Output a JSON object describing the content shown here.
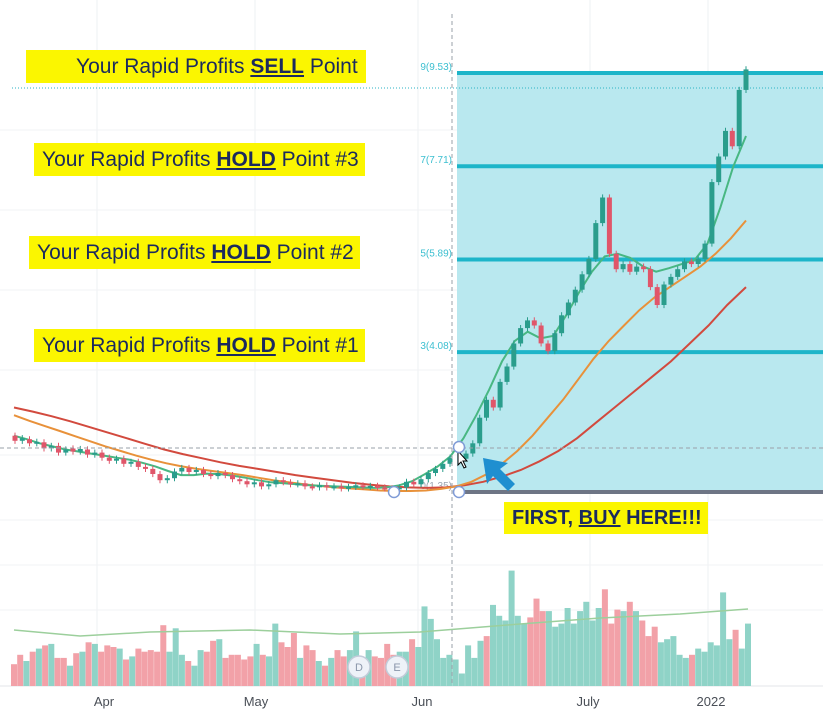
{
  "callouts": {
    "sell": {
      "prefix": "Your Rapid Profits ",
      "key": "SELL",
      "suffix": " Point"
    },
    "hold3": {
      "prefix": "Your Rapid Profits ",
      "key": "HOLD",
      "suffix": " Point #3"
    },
    "hold2": {
      "prefix": "Your Rapid Profits ",
      "key": "HOLD",
      "suffix": " Point #2"
    },
    "hold1": {
      "prefix": "Your Rapid Profits ",
      "key": "HOLD",
      "suffix": " Point #1"
    },
    "buy": {
      "prefix": "FIRST, ",
      "key": "BUY",
      "suffix": " HERE!!!"
    }
  },
  "badges": [
    "D",
    "E"
  ],
  "colors": {
    "zone_fill": "#b9e8ef",
    "level_line": "#1db5c9",
    "base_line": "#6e7585",
    "candle_up": "#2a9d8c",
    "candle_down": "#e0566a",
    "vol_up": "#8fd3c7",
    "vol_down": "#f2a1a8",
    "ma_fast": "#48b782",
    "ma_mid": "#e8913a",
    "ma_slow": "#d24a3e",
    "ma_volume": "#9ccf9c",
    "callout_bg": "#fbf600",
    "callout_text": "#1b2a5e",
    "arrow": "#1f8fd0"
  },
  "chart_data": {
    "type": "candlestick",
    "x_ticks": [
      "Apr",
      "May",
      "Jun",
      "July",
      "2022"
    ],
    "fib_levels": [
      {
        "ratio": "9",
        "price": "9.53",
        "value": 9.53
      },
      {
        "ratio": "7",
        "price": "7.71",
        "value": 7.71
      },
      {
        "ratio": "5",
        "price": "5.89",
        "value": 5.89
      },
      {
        "ratio": "3",
        "price": "4.08",
        "value": 4.08
      },
      {
        "ratio": "0",
        "price": "1.35",
        "value": 1.35
      }
    ],
    "price_range": [
      1.0,
      10.0
    ],
    "candles_before": [
      [
        2.45,
        2.35
      ],
      [
        2.35,
        2.4
      ],
      [
        2.38,
        2.3
      ],
      [
        2.3,
        2.33
      ],
      [
        2.32,
        2.2
      ],
      [
        2.2,
        2.25
      ],
      [
        2.25,
        2.12
      ],
      [
        2.12,
        2.18
      ],
      [
        2.2,
        2.14
      ],
      [
        2.14,
        2.19
      ],
      [
        2.18,
        2.08
      ],
      [
        2.08,
        2.12
      ],
      [
        2.12,
        2.02
      ],
      [
        2.02,
        1.96
      ],
      [
        1.96,
        2.0
      ],
      [
        2.0,
        1.9
      ],
      [
        1.9,
        1.94
      ],
      [
        1.94,
        1.84
      ],
      [
        1.84,
        1.8
      ],
      [
        1.8,
        1.7
      ],
      [
        1.7,
        1.58
      ],
      [
        1.58,
        1.62
      ],
      [
        1.62,
        1.75
      ],
      [
        1.75,
        1.82
      ],
      [
        1.82,
        1.74
      ],
      [
        1.74,
        1.78
      ],
      [
        1.78,
        1.7
      ],
      [
        1.7,
        1.66
      ],
      [
        1.66,
        1.72
      ],
      [
        1.72,
        1.68
      ],
      [
        1.68,
        1.6
      ],
      [
        1.6,
        1.56
      ],
      [
        1.56,
        1.5
      ],
      [
        1.5,
        1.54
      ],
      [
        1.54,
        1.46
      ],
      [
        1.46,
        1.5
      ],
      [
        1.5,
        1.58
      ],
      [
        1.58,
        1.54
      ],
      [
        1.54,
        1.5
      ],
      [
        1.5,
        1.52
      ],
      [
        1.52,
        1.46
      ],
      [
        1.46,
        1.44
      ],
      [
        1.44,
        1.48
      ],
      [
        1.48,
        1.44
      ],
      [
        1.44,
        1.46
      ],
      [
        1.46,
        1.42
      ],
      [
        1.42,
        1.45
      ],
      [
        1.45,
        1.48
      ],
      [
        1.48,
        1.45
      ],
      [
        1.45,
        1.47
      ],
      [
        1.47,
        1.44
      ],
      [
        1.44,
        1.42
      ],
      [
        1.42,
        1.4
      ],
      [
        1.4,
        1.44
      ],
      [
        1.44,
        1.55
      ],
      [
        1.55,
        1.5
      ],
      [
        1.5,
        1.6
      ],
      [
        1.6,
        1.72
      ],
      [
        1.72,
        1.8
      ],
      [
        1.8,
        1.9
      ],
      [
        1.9,
        2.02
      ]
    ],
    "candles_after": [
      [
        2.0,
        2.1
      ],
      [
        2.1,
        2.3
      ],
      [
        2.3,
        2.8
      ],
      [
        2.8,
        3.15
      ],
      [
        3.15,
        3.0
      ],
      [
        3.0,
        3.5
      ],
      [
        3.5,
        3.8
      ],
      [
        3.8,
        4.25
      ],
      [
        4.25,
        4.55
      ],
      [
        4.55,
        4.7
      ],
      [
        4.7,
        4.6
      ],
      [
        4.6,
        4.25
      ],
      [
        4.25,
        4.1
      ],
      [
        4.1,
        4.45
      ],
      [
        4.45,
        4.8
      ],
      [
        4.8,
        5.05
      ],
      [
        5.05,
        5.3
      ],
      [
        5.3,
        5.6
      ],
      [
        5.6,
        5.9
      ],
      [
        5.9,
        6.6
      ],
      [
        6.6,
        7.1
      ],
      [
        7.1,
        6.0
      ],
      [
        6.0,
        5.7
      ],
      [
        5.7,
        5.8
      ],
      [
        5.8,
        5.65
      ],
      [
        5.65,
        5.75
      ],
      [
        5.75,
        5.7
      ],
      [
        5.7,
        5.35
      ],
      [
        5.35,
        5.0
      ],
      [
        5.0,
        5.4
      ],
      [
        5.4,
        5.55
      ],
      [
        5.55,
        5.7
      ],
      [
        5.7,
        5.85
      ],
      [
        5.85,
        5.8
      ],
      [
        5.8,
        5.9
      ],
      [
        5.9,
        6.2
      ],
      [
        6.2,
        7.4
      ],
      [
        7.4,
        7.9
      ],
      [
        7.9,
        8.4
      ],
      [
        8.4,
        8.1
      ],
      [
        8.1,
        9.2
      ],
      [
        9.2,
        9.6
      ]
    ],
    "ma_fast": [
      2.45,
      2.38,
      2.3,
      2.24,
      2.18,
      2.14,
      2.1,
      2.06,
      2.02,
      1.98,
      1.92,
      1.85,
      1.76,
      1.68,
      1.68,
      1.71,
      1.7,
      1.67,
      1.63,
      1.58,
      1.54,
      1.52,
      1.5,
      1.48,
      1.47,
      1.46,
      1.45,
      1.44,
      1.43,
      1.44,
      1.48,
      1.56,
      1.7,
      1.85,
      2.05,
      2.4,
      2.85,
      3.35,
      3.9,
      4.3,
      4.48,
      4.35,
      4.4,
      4.8,
      5.25,
      5.65,
      5.95,
      6.0,
      5.92,
      5.75,
      5.65,
      5.72,
      5.8,
      5.88,
      6.2,
      6.9,
      7.7,
      8.3
    ],
    "ma_mid": [
      2.85,
      2.74,
      2.64,
      2.54,
      2.44,
      2.34,
      2.24,
      2.15,
      2.06,
      1.98,
      1.91,
      1.85,
      1.8,
      1.76,
      1.72,
      1.68,
      1.63,
      1.58,
      1.54,
      1.5,
      1.47,
      1.44,
      1.42,
      1.4,
      1.38,
      1.37,
      1.37,
      1.38,
      1.41,
      1.46,
      1.55,
      1.7,
      1.9,
      2.15,
      2.45,
      2.8,
      3.15,
      3.55,
      3.95,
      4.3,
      4.6,
      4.9,
      5.15,
      5.35,
      5.55,
      5.75,
      6.0,
      6.3,
      6.65
    ],
    "ma_slow": [
      3.0,
      2.92,
      2.83,
      2.73,
      2.62,
      2.51,
      2.4,
      2.29,
      2.18,
      2.09,
      2.01,
      1.93,
      1.86,
      1.8,
      1.74,
      1.68,
      1.63,
      1.58,
      1.53,
      1.49,
      1.46,
      1.44,
      1.43,
      1.44,
      1.48,
      1.55,
      1.65,
      1.78,
      1.95,
      2.15,
      2.4,
      2.7,
      3.0,
      3.3,
      3.6,
      3.9,
      4.25,
      4.6,
      5.0,
      5.35
    ],
    "volume_before": [
      14,
      20,
      16,
      22,
      24,
      26,
      27,
      18,
      18,
      13,
      21,
      22,
      28,
      27,
      22,
      26,
      25,
      24,
      17,
      19,
      24,
      22,
      23,
      22,
      39,
      22,
      37,
      20,
      16,
      13,
      23,
      22,
      29,
      30,
      18,
      20,
      20,
      17,
      19,
      27,
      20,
      19,
      40,
      28,
      25,
      34,
      18,
      26,
      23,
      16,
      13,
      18,
      23,
      19,
      23,
      35,
      15,
      23,
      19,
      18,
      27,
      20,
      22,
      22,
      30,
      25,
      51,
      43,
      30,
      18,
      20,
      17,
      8,
      26
    ],
    "volume_after": [
      18,
      29,
      32,
      52,
      45,
      42,
      74,
      45,
      40,
      44,
      56,
      48,
      48,
      38,
      40,
      50,
      40,
      48,
      54,
      42,
      50,
      62,
      40,
      49,
      48,
      54,
      48,
      42,
      32,
      38,
      28,
      30,
      32,
      20,
      18,
      20,
      24,
      22,
      28,
      26,
      60,
      30,
      36,
      24,
      40
    ],
    "volume_range": [
      0,
      100
    ]
  }
}
